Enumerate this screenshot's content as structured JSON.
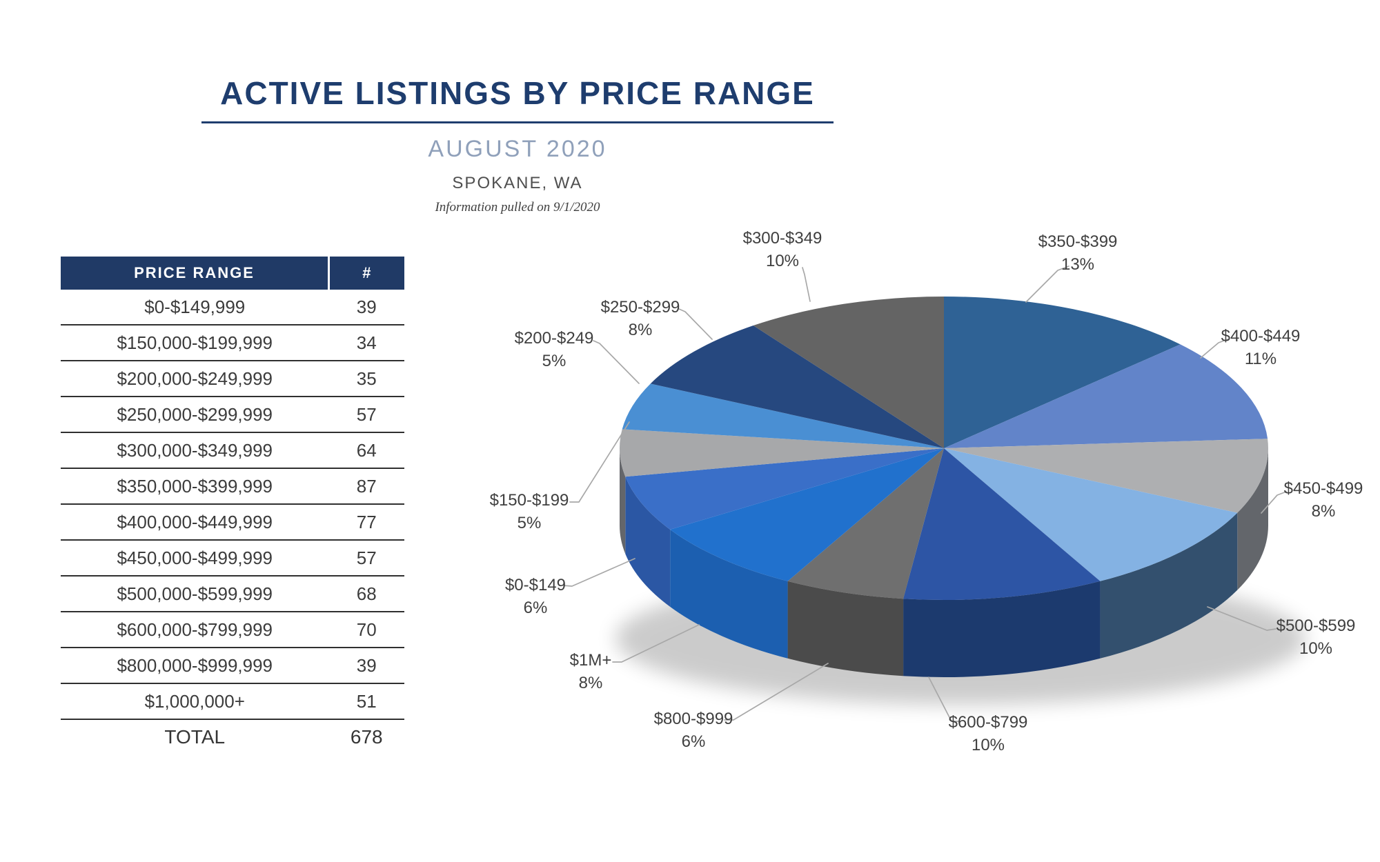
{
  "header": {
    "title": "ACTIVE LISTINGS BY PRICE RANGE",
    "subtitle": "AUGUST 2020",
    "location": "SPOKANE, WA",
    "note": "Information pulled on 9/1/2020"
  },
  "table": {
    "columns": [
      "PRICE RANGE",
      "#"
    ],
    "rows": [
      {
        "range": "$0-$149,999",
        "count": "39"
      },
      {
        "range": "$150,000-$199,999",
        "count": "34"
      },
      {
        "range": "$200,000-$249,999",
        "count": "35"
      },
      {
        "range": "$250,000-$299,999",
        "count": "57"
      },
      {
        "range": "$300,000-$349,999",
        "count": "64"
      },
      {
        "range": "$350,000-$399,999",
        "count": "87"
      },
      {
        "range": "$400,000-$449,999",
        "count": "77"
      },
      {
        "range": "$450,000-$499,999",
        "count": "57"
      },
      {
        "range": "$500,000-$599,999",
        "count": "68"
      },
      {
        "range": "$600,000-$799,999",
        "count": "70"
      },
      {
        "range": "$800,000-$999,999",
        "count": "39"
      },
      {
        "range": "$1,000,000+",
        "count": "51"
      }
    ],
    "total_label": "TOTAL",
    "total_value": "678"
  },
  "chart_data": {
    "type": "pie",
    "title": "Active listings by price range (share of 678 listings)",
    "style": "3d-pie-with-callout-labels",
    "clockwise": true,
    "start_angle_deg": 0,
    "legend_position": "callout-labels",
    "slices": [
      {
        "label": "$350-$399",
        "pct": 13,
        "color": "#2f6295",
        "rim": "#1f4668"
      },
      {
        "label": "$400-$449",
        "pct": 11,
        "color": "#6284c9",
        "rim": "#44619c"
      },
      {
        "label": "$450-$499",
        "pct": 8,
        "color": "#aeafb1",
        "rim": "#63666b"
      },
      {
        "label": "$500-$599",
        "pct": 10,
        "color": "#84b2e3",
        "rim": "#33506e"
      },
      {
        "label": "$600-$799",
        "pct": 10,
        "color": "#2d55a5",
        "rim": "#1c3a6e"
      },
      {
        "label": "$800-$999",
        "pct": 6,
        "color": "#6f6f6f",
        "rim": "#4b4b4b"
      },
      {
        "label": "$1M+",
        "pct": 8,
        "color": "#2171cd",
        "rim": "#1c5fb0"
      },
      {
        "label": "$0-$149",
        "pct": 6,
        "color": "#3a6fc8",
        "rim": "#2b57a4"
      },
      {
        "label": "$150-$199",
        "pct": 5,
        "color": "#a7a8aa",
        "rim": "#64666a"
      },
      {
        "label": "$200-$249",
        "pct": 5,
        "color": "#4a8fd3",
        "rim": "#33699f"
      },
      {
        "label": "$250-$299",
        "pct": 8,
        "color": "#26487f",
        "rim": "#1a3259"
      },
      {
        "label": "$300-$349",
        "pct": 10,
        "color": "#646464",
        "rim": "#454545"
      }
    ]
  }
}
